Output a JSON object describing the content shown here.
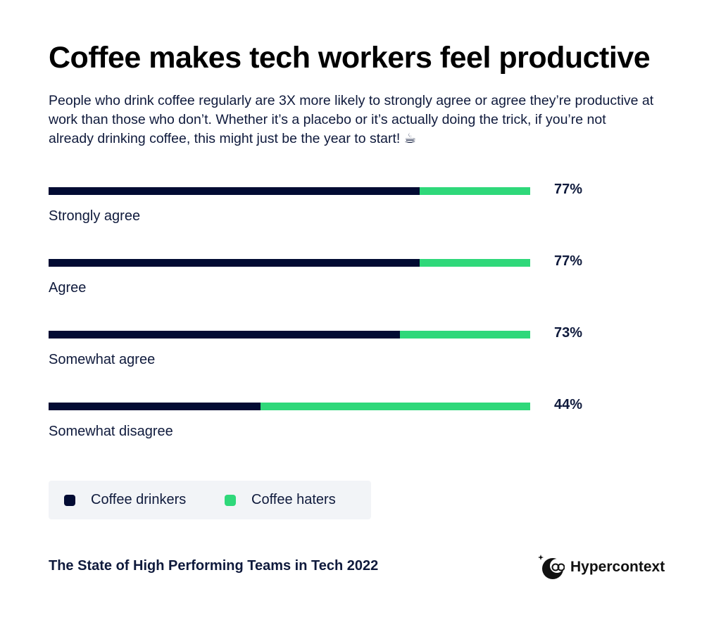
{
  "title": "Coffee makes tech workers feel productive",
  "subtitle": "People who drink coffee regularly are 3X more likely to strongly agree or agree they’re productive at work than those who don’t. Whether it’s a placebo or it’s actually doing the trick, if you’re not already drinking coffee, this might just be the year to start! ☕",
  "chart_data": {
    "type": "bar",
    "orientation": "horizontal",
    "stacked": true,
    "categories": [
      "Strongly agree",
      "Agree",
      "Somewhat agree",
      "Somewhat disagree"
    ],
    "value_labels": [
      "77%",
      "77%",
      "73%",
      "44%"
    ],
    "series": [
      {
        "name": "Coffee drinkers",
        "values": [
          77,
          77,
          73,
          44
        ],
        "color": "#020b33"
      },
      {
        "name": "Coffee haters",
        "values": [
          23,
          23,
          27,
          56
        ],
        "color": "#2fd87a"
      }
    ],
    "xlim": [
      0,
      100
    ],
    "grid": false,
    "legend_position": "bottom-left"
  },
  "legend": {
    "items": [
      {
        "label": "Coffee drinkers",
        "color": "#020b33"
      },
      {
        "label": "Coffee haters",
        "color": "#2fd87a"
      }
    ]
  },
  "footer": {
    "source": "The State of High Performing Teams in Tech 2022",
    "brand": "Hypercontext",
    "brand_icon": "hypercontext-logo-icon"
  }
}
